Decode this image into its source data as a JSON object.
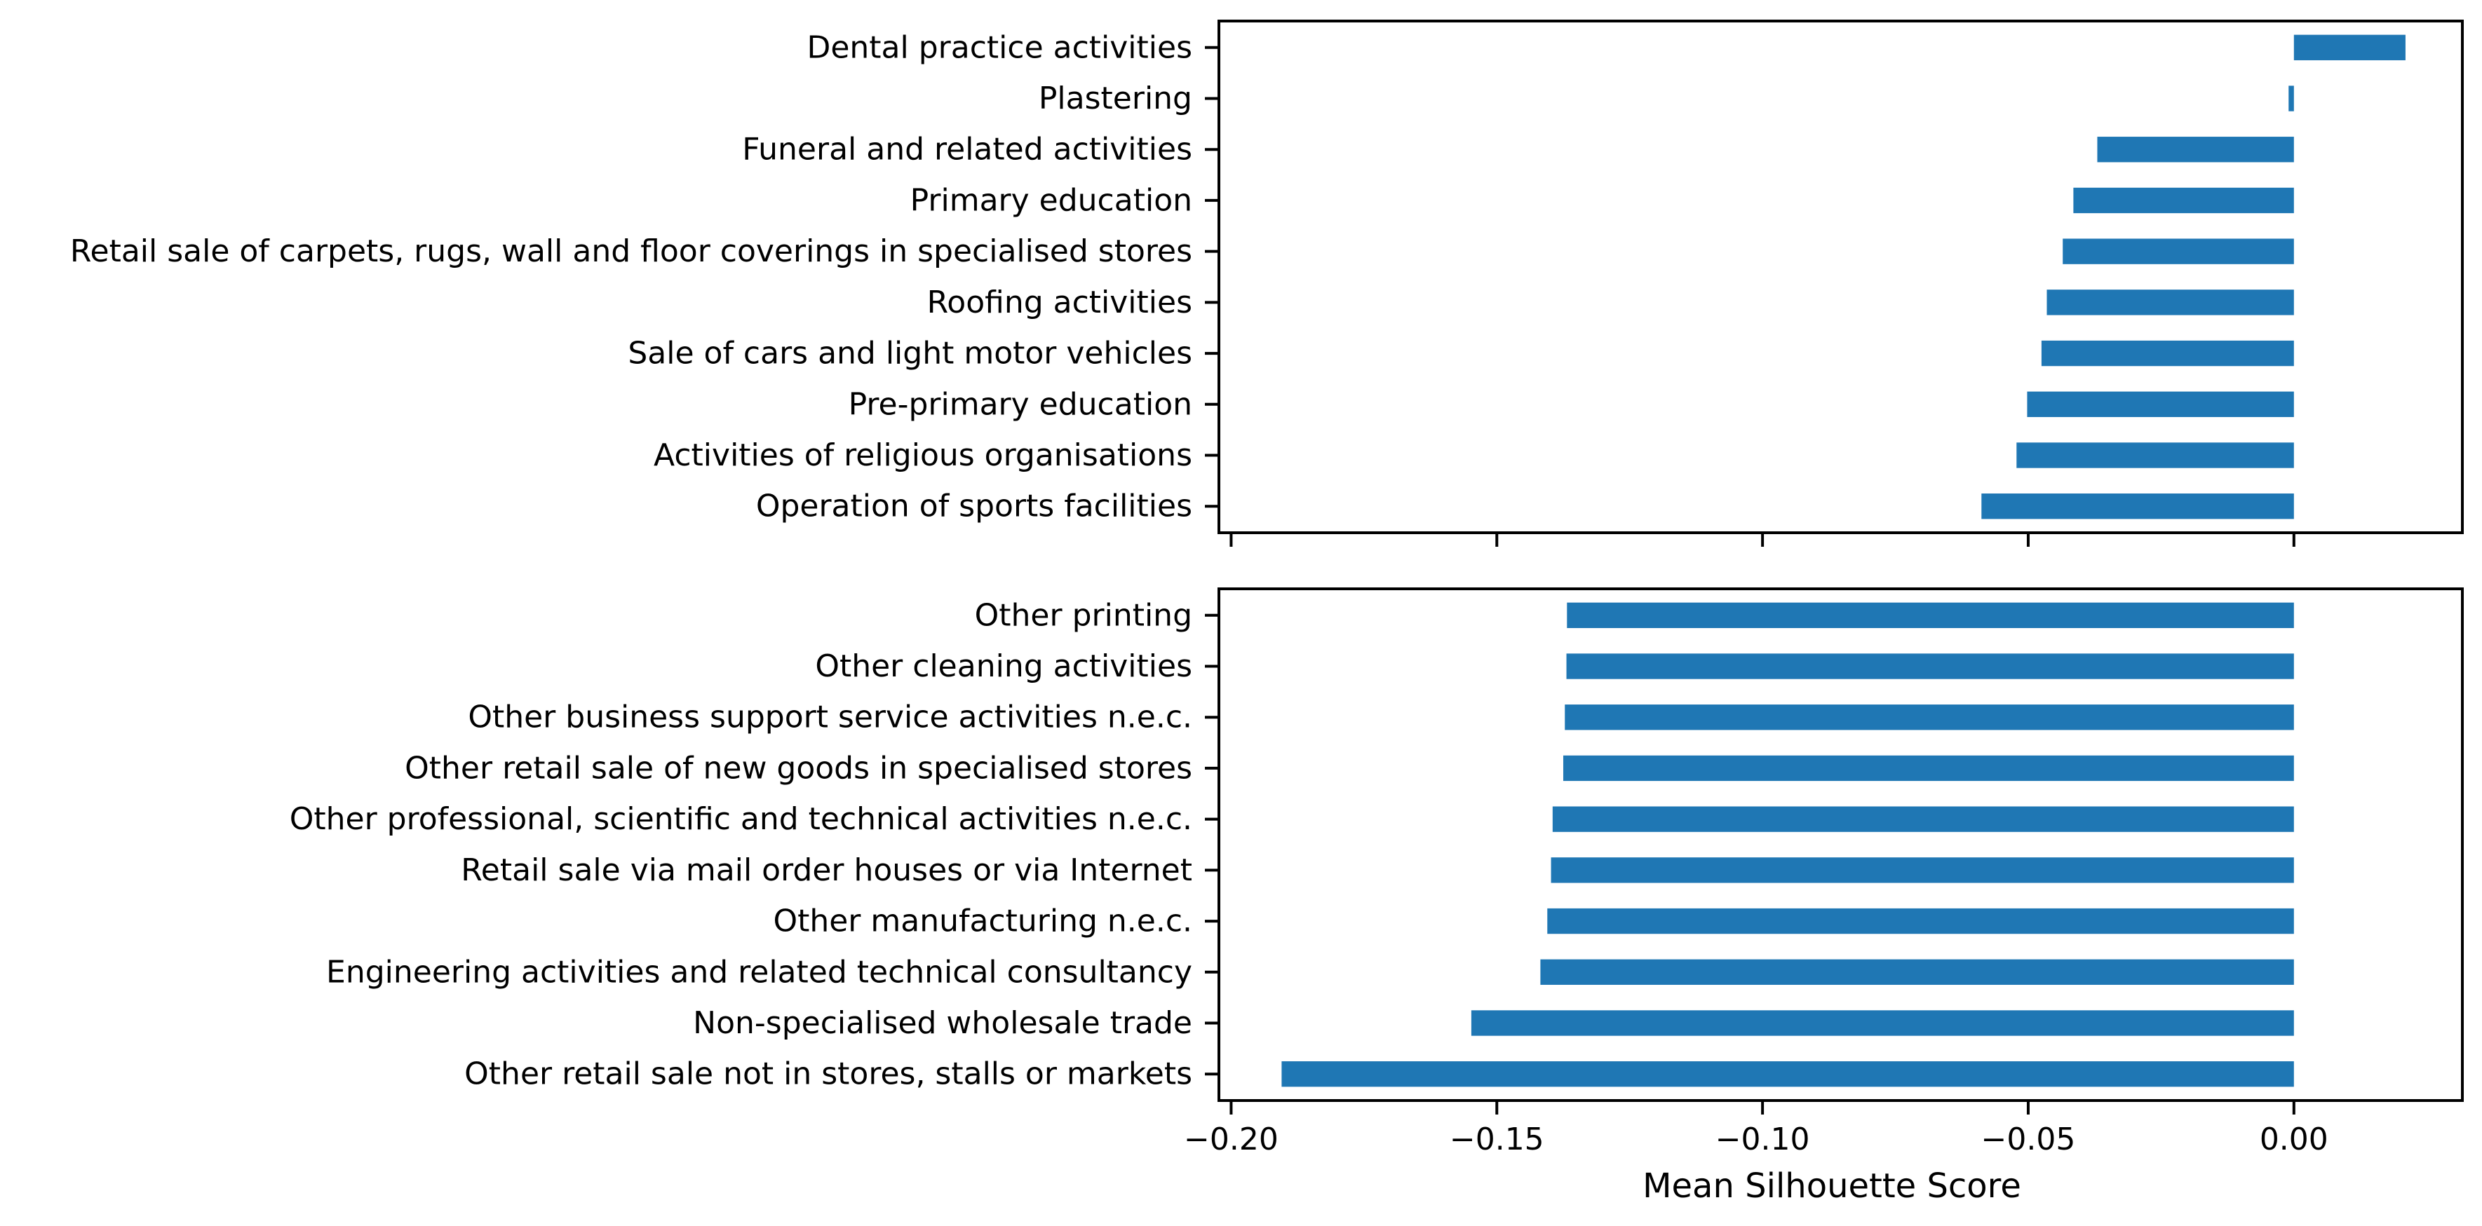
{
  "chart_data": [
    {
      "type": "bar",
      "orientation": "horizontal",
      "categories": [
        "Dental practice activities",
        "Plastering",
        "Funeral and related activities",
        "Primary education",
        "Retail sale of carpets, rugs, wall and floor coverings in specialised stores",
        "Roofing activities",
        "Sale of cars and light motor vehicles",
        "Pre-primary education",
        "Activities of religious organisations",
        "Operation of sports facilities"
      ],
      "values": [
        0.021,
        -0.001,
        -0.037,
        -0.0415,
        -0.0435,
        -0.0465,
        -0.0475,
        -0.0502,
        -0.0522,
        -0.0588
      ],
      "color": "#1f77b4",
      "xlim": [
        -0.2023,
        0.0317
      ],
      "xticks": [
        -0.2,
        -0.15,
        -0.1,
        -0.05,
        0.0
      ],
      "xtick_labels_visible": false,
      "xlabel": "",
      "grid": false
    },
    {
      "type": "bar",
      "orientation": "horizontal",
      "categories": [
        "Other printing",
        "Other cleaning activities",
        "Other business support service activities n.e.c.",
        "Other retail sale of new goods in specialised stores",
        "Other professional, scientific and technical activities n.e.c.",
        "Retail sale via mail order houses or via Internet",
        "Other manufacturing n.e.c.",
        "Engineering activities and related technical consultancy",
        "Non-specialised wholesale trade",
        "Other retail sale not in stores, stalls or markets"
      ],
      "values": [
        -0.1368,
        -0.1369,
        -0.1372,
        -0.1375,
        -0.1395,
        -0.1398,
        -0.1405,
        -0.1418,
        -0.1548,
        -0.1905
      ],
      "color": "#1f77b4",
      "xlim": [
        -0.2023,
        0.0317
      ],
      "xticks": [
        -0.2,
        -0.15,
        -0.1,
        -0.05,
        0.0
      ],
      "xtick_labels": [
        "−0.20",
        "−0.15",
        "−0.10",
        "−0.05",
        "0.00"
      ],
      "xtick_labels_visible": true,
      "xlabel": "Mean Silhouette Score",
      "grid": false
    }
  ]
}
